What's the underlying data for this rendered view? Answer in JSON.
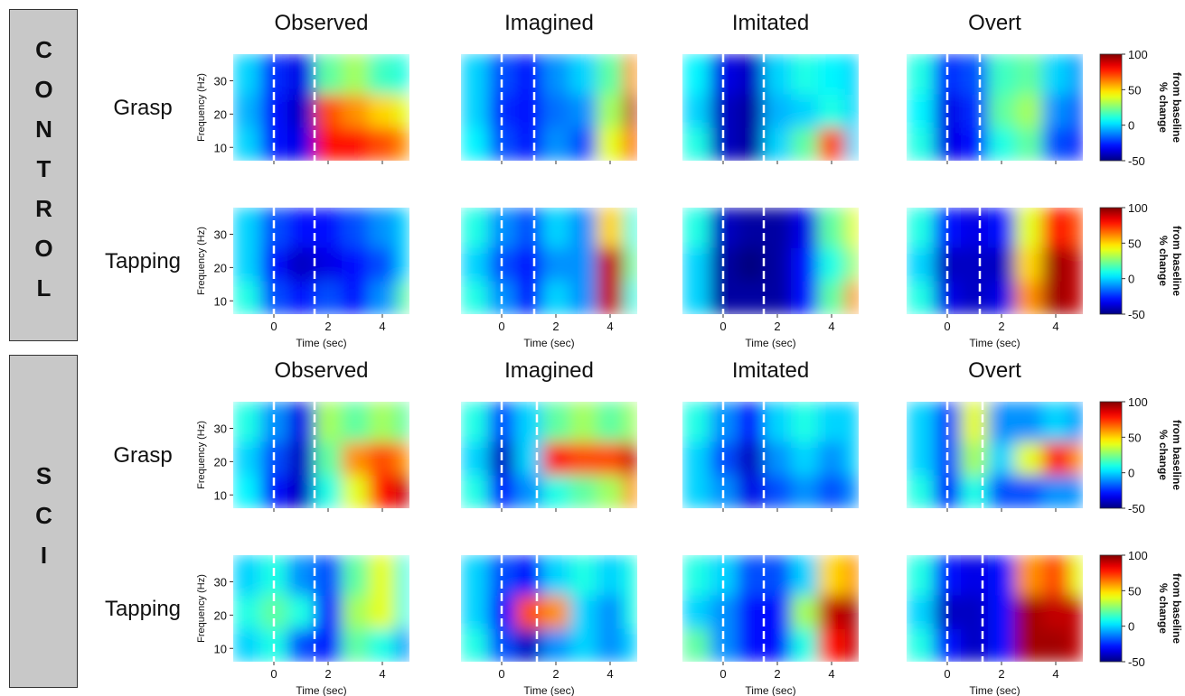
{
  "chart_data": {
    "type": "heatmap",
    "xlabel": "Time (sec)",
    "ylabel": "Frequency (Hz)",
    "xlim": [
      -1.5,
      5
    ],
    "ylim": [
      6,
      38
    ],
    "xticks": [
      0,
      2,
      4
    ],
    "yticks": [
      10,
      20,
      30
    ],
    "x_edges": [
      -1.5,
      -0.5,
      0.5,
      1.5,
      2.5,
      3.5,
      4.5,
      5
    ],
    "y_edges": [
      6,
      16,
      26,
      38
    ],
    "colormap": "jet",
    "colorbar": {
      "label": [
        "% change",
        "from baseline"
      ],
      "lim": [
        -50,
        100
      ],
      "ticks": [
        100,
        50,
        0,
        -50
      ]
    },
    "groups": [
      {
        "name": "CONTROL",
        "columns": [
          "Observed",
          "Imagined",
          "Imitated",
          "Overt"
        ],
        "rows": [
          {
            "name": "Grasp",
            "panels": [
              {
                "markers": [
                  0,
                  1.5
                ],
                "values": [
                  [
                    0,
                    -30,
                    -35,
                    80,
                    80,
                    70,
                    60
                  ],
                  [
                    -5,
                    -30,
                    -40,
                    70,
                    60,
                    50,
                    40
                  ],
                  [
                    0,
                    -25,
                    -35,
                    20,
                    30,
                    15,
                    10
                  ]
                ]
              },
              {
                "markers": [
                  0,
                  1.2
                ],
                "values": [
                  [
                    5,
                    -20,
                    -30,
                    -10,
                    -20,
                    40,
                    70
                  ],
                  [
                    0,
                    -25,
                    -30,
                    -15,
                    -10,
                    30,
                    90
                  ],
                  [
                    0,
                    -20,
                    -30,
                    -10,
                    0,
                    20,
                    60
                  ]
                ]
              },
              {
                "markers": [
                  0,
                  1.5
                ],
                "values": [
                  [
                    10,
                    -40,
                    -45,
                    0,
                    20,
                    70,
                    0
                  ],
                  [
                    0,
                    -40,
                    -45,
                    -5,
                    0,
                    10,
                    0
                  ],
                  [
                    5,
                    -35,
                    -40,
                    0,
                    10,
                    5,
                    0
                  ]
                ]
              },
              {
                "markers": [
                  0,
                  1.2
                ],
                "values": [
                  [
                    10,
                    -35,
                    -30,
                    10,
                    20,
                    -20,
                    -30
                  ],
                  [
                    5,
                    -35,
                    -25,
                    20,
                    30,
                    -10,
                    -20
                  ],
                  [
                    10,
                    -25,
                    -20,
                    15,
                    20,
                    0,
                    -10
                  ]
                ]
              }
            ]
          },
          {
            "name": "Tapping",
            "panels": [
              {
                "markers": [
                  0,
                  1.5
                ],
                "values": [
                  [
                    10,
                    -20,
                    -30,
                    -20,
                    -30,
                    -10,
                    20
                  ],
                  [
                    0,
                    -30,
                    -40,
                    -35,
                    -30,
                    -20,
                    0
                  ],
                  [
                    0,
                    -20,
                    -30,
                    -30,
                    -20,
                    -10,
                    0
                  ]
                ]
              },
              {
                "markers": [
                  0,
                  1.2
                ],
                "values": [
                  [
                    10,
                    -10,
                    -30,
                    0,
                    -10,
                    90,
                    10
                  ],
                  [
                    0,
                    -20,
                    -30,
                    -10,
                    -10,
                    90,
                    20
                  ],
                  [
                    10,
                    -10,
                    -20,
                    0,
                    -10,
                    50,
                    10
                  ]
                ]
              },
              {
                "markers": [
                  0,
                  1.5
                ],
                "values": [
                  [
                    0,
                    -45,
                    -45,
                    -45,
                    -30,
                    20,
                    60
                  ],
                  [
                    0,
                    -45,
                    -50,
                    -45,
                    -30,
                    10,
                    30
                  ],
                  [
                    10,
                    -40,
                    -45,
                    -45,
                    -35,
                    20,
                    40
                  ]
                ]
              },
              {
                "markers": [
                  0,
                  1.2
                ],
                "values": [
                  [
                    10,
                    -35,
                    -40,
                    -35,
                    60,
                    95,
                    90
                  ],
                  [
                    0,
                    -40,
                    -40,
                    -40,
                    50,
                    95,
                    90
                  ],
                  [
                    10,
                    -30,
                    -35,
                    -30,
                    40,
                    80,
                    70
                  ]
                ]
              }
            ]
          }
        ]
      },
      {
        "name": "SCI",
        "columns": [
          "Observed",
          "Imagined",
          "Imitated",
          "Overt"
        ],
        "rows": [
          {
            "name": "Grasp",
            "panels": [
              {
                "markers": [
                  0,
                  1.5
                ],
                "values": [
                  [
                    5,
                    -30,
                    -40,
                    10,
                    40,
                    80,
                    90
                  ],
                  [
                    0,
                    -20,
                    -40,
                    20,
                    60,
                    70,
                    60
                  ],
                  [
                    10,
                    -10,
                    -35,
                    30,
                    20,
                    30,
                    20
                  ]
                ]
              },
              {
                "markers": [
                  0,
                  1.3
                ],
                "values": [
                  [
                    10,
                    -30,
                    -10,
                    10,
                    20,
                    30,
                    60
                  ],
                  [
                    0,
                    -40,
                    0,
                    80,
                    70,
                    70,
                    90
                  ],
                  [
                    10,
                    -20,
                    0,
                    20,
                    30,
                    20,
                    30
                  ]
                ]
              },
              {
                "markers": [
                  0,
                  1.5
                ],
                "values": [
                  [
                    0,
                    -10,
                    -35,
                    -20,
                    -10,
                    -20,
                    -10
                  ],
                  [
                    0,
                    -20,
                    -40,
                    -10,
                    0,
                    -10,
                    0
                  ],
                  [
                    10,
                    -10,
                    -30,
                    0,
                    10,
                    0,
                    0
                  ]
                ]
              },
              {
                "markers": [
                  0,
                  1.3
                ],
                "values": [
                  [
                    10,
                    -30,
                    10,
                    -20,
                    -20,
                    -10,
                    -10
                  ],
                  [
                    0,
                    -20,
                    30,
                    0,
                    40,
                    80,
                    60
                  ],
                  [
                    0,
                    -20,
                    40,
                    -10,
                    -10,
                    0,
                    -10
                  ]
                ]
              }
            ]
          },
          {
            "name": "Tapping",
            "panels": [
              {
                "markers": [
                  0,
                  1.5
                ],
                "values": [
                  [
                    0,
                    10,
                    -20,
                    -30,
                    20,
                    10,
                    -10
                  ],
                  [
                    10,
                    20,
                    10,
                    -30,
                    30,
                    40,
                    10
                  ],
                  [
                    0,
                    10,
                    -10,
                    -20,
                    20,
                    40,
                    10
                  ]
                ]
              },
              {
                "markers": [
                  0,
                  1.3
                ],
                "values": [
                  [
                    10,
                    -20,
                    -40,
                    -10,
                    0,
                    -10,
                    0
                  ],
                  [
                    0,
                    -30,
                    70,
                    60,
                    0,
                    -10,
                    10
                  ],
                  [
                    0,
                    -20,
                    -30,
                    0,
                    10,
                    0,
                    10
                  ]
                ]
              },
              {
                "markers": [
                  0,
                  1.5
                ],
                "values": [
                  [
                    20,
                    -10,
                    -30,
                    -30,
                    10,
                    80,
                    90
                  ],
                  [
                    0,
                    -10,
                    -30,
                    -30,
                    30,
                    90,
                    95
                  ],
                  [
                    10,
                    0,
                    -20,
                    -20,
                    0,
                    50,
                    60
                  ]
                ]
              },
              {
                "markers": [
                  0,
                  1.3
                ],
                "values": [
                  [
                    10,
                    -30,
                    -40,
                    -30,
                    95,
                    95,
                    90
                  ],
                  [
                    0,
                    -40,
                    -40,
                    -30,
                    95,
                    90,
                    90
                  ],
                  [
                    10,
                    -30,
                    -35,
                    -30,
                    60,
                    70,
                    40
                  ]
                ]
              }
            ]
          }
        ]
      }
    ]
  }
}
